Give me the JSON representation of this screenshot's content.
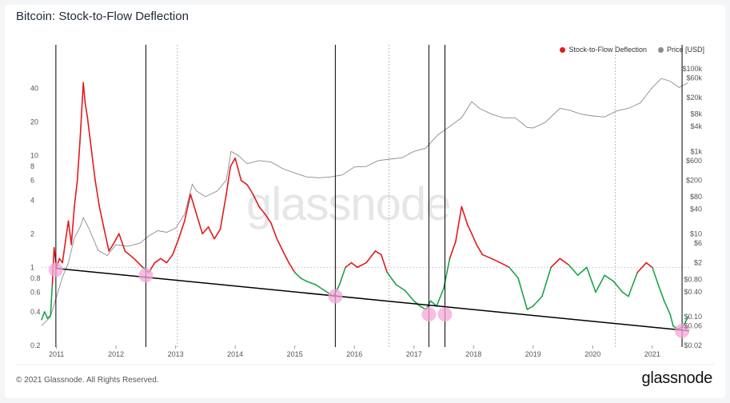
{
  "header": {
    "title": "Bitcoin: Stock-to-Flow Deflection"
  },
  "footer": {
    "copyright": "© 2021 Glassnode. All Rights Reserved.",
    "brand": "glassnode"
  },
  "watermark": "glassnode",
  "colors": {
    "deflection_above": "#e31a1c",
    "deflection_below": "#1aa34a",
    "price": "#8c8c8c",
    "trendline": "#000000",
    "highlight": "#f4a6d7"
  },
  "chart_data": {
    "type": "line",
    "title": "Bitcoin: Stock-to-Flow Deflection",
    "x_ticks": [
      "2011",
      "2012",
      "2013",
      "2014",
      "2015",
      "2016",
      "2017",
      "2018",
      "2019",
      "2020",
      "2021"
    ],
    "x_range": [
      2010.75,
      2021.62
    ],
    "y_left": {
      "scale": "log",
      "range": [
        0.2,
        60
      ],
      "ticks": [
        "40",
        "20",
        "10",
        "8",
        "6",
        "4",
        "2",
        "1",
        "0.8",
        "0.6",
        "0.4",
        "0.2"
      ]
    },
    "y_right": {
      "scale": "log",
      "range": [
        0.02,
        100000
      ],
      "ticks": [
        "$100k",
        "$60k",
        "$20k",
        "$8k",
        "$4k",
        "$1k",
        "$600",
        "$200",
        "$80",
        "$40",
        "$10",
        "$6",
        "$2",
        "$0.80",
        "$0.40",
        "$0.10",
        "$0.06",
        "$0.02"
      ]
    },
    "reference_level": 1,
    "legend": {
      "placement": "top-right",
      "items": [
        "Stock-to-Flow Deflection",
        "Price [USD]"
      ]
    },
    "series": [
      {
        "name": "Stock-to-Flow Deflection",
        "x": [
          2010.75,
          2010.8,
          2010.85,
          2010.9,
          2010.93,
          2010.96,
          2011.0,
          2011.05,
          2011.1,
          2011.15,
          2011.2,
          2011.25,
          2011.3,
          2011.35,
          2011.4,
          2011.45,
          2011.48,
          2011.52,
          2011.58,
          2011.65,
          2011.72,
          2011.8,
          2011.88,
          2011.95,
          2012.05,
          2012.15,
          2012.3,
          2012.45,
          2012.55,
          2012.65,
          2012.75,
          2012.85,
          2012.95,
          2013.05,
          2013.15,
          2013.25,
          2013.35,
          2013.45,
          2013.55,
          2013.65,
          2013.75,
          2013.85,
          2013.92,
          2014.0,
          2014.1,
          2014.2,
          2014.3,
          2014.4,
          2014.5,
          2014.6,
          2014.7,
          2014.8,
          2014.9,
          2015.0,
          2015.1,
          2015.2,
          2015.35,
          2015.5,
          2015.65,
          2015.75,
          2015.85,
          2015.95,
          2016.05,
          2016.2,
          2016.35,
          2016.45,
          2016.55,
          2016.7,
          2016.85,
          2017.0,
          2017.1,
          2017.2,
          2017.28,
          2017.38,
          2017.5,
          2017.6,
          2017.7,
          2017.8,
          2017.9,
          2017.97,
          2018.05,
          2018.15,
          2018.3,
          2018.45,
          2018.6,
          2018.75,
          2018.9,
          2019.0,
          2019.15,
          2019.3,
          2019.45,
          2019.6,
          2019.75,
          2019.9,
          2020.05,
          2020.2,
          2020.35,
          2020.5,
          2020.6,
          2020.75,
          2020.9,
          2021.0,
          2021.1,
          2021.2,
          2021.3,
          2021.35,
          2021.42,
          2021.5,
          2021.55,
          2021.6
        ],
        "y": [
          0.34,
          0.4,
          0.35,
          0.37,
          0.7,
          1.5,
          1.0,
          1.2,
          1.1,
          1.7,
          2.6,
          1.6,
          3.5,
          6.0,
          15.0,
          45.0,
          30.0,
          22.0,
          12.0,
          6.0,
          3.5,
          2.2,
          1.4,
          1.6,
          2.0,
          1.4,
          1.2,
          1.0,
          0.9,
          1.1,
          1.2,
          1.1,
          1.3,
          1.8,
          2.6,
          4.5,
          3.0,
          2.0,
          2.3,
          1.8,
          2.2,
          4.5,
          8.0,
          9.5,
          6.0,
          5.5,
          4.5,
          3.5,
          3.0,
          2.5,
          1.8,
          1.4,
          1.1,
          0.9,
          0.8,
          0.75,
          0.7,
          0.62,
          0.55,
          0.7,
          1.0,
          1.1,
          1.0,
          1.1,
          1.4,
          1.3,
          0.9,
          0.7,
          0.62,
          0.5,
          0.45,
          0.42,
          0.5,
          0.45,
          0.65,
          1.2,
          1.7,
          3.5,
          2.4,
          2.0,
          1.6,
          1.3,
          1.2,
          1.1,
          1.0,
          0.8,
          0.42,
          0.45,
          0.55,
          1.0,
          1.2,
          1.05,
          0.85,
          1.0,
          0.6,
          0.85,
          0.75,
          0.6,
          0.55,
          0.9,
          1.1,
          1.0,
          0.7,
          0.5,
          0.38,
          0.3,
          0.28,
          0.29,
          0.32,
          0.36
        ],
        "threshold": 1
      },
      {
        "name": "Price [USD]",
        "x": [
          2010.75,
          2010.9,
          2011.0,
          2011.1,
          2011.2,
          2011.3,
          2011.4,
          2011.45,
          2011.55,
          2011.7,
          2011.85,
          2012.0,
          2012.2,
          2012.4,
          2012.55,
          2012.7,
          2012.85,
          2013.0,
          2013.15,
          2013.28,
          2013.35,
          2013.5,
          2013.7,
          2013.85,
          2013.93,
          2014.05,
          2014.2,
          2014.4,
          2014.6,
          2014.8,
          2015.0,
          2015.2,
          2015.4,
          2015.6,
          2015.8,
          2016.0,
          2016.2,
          2016.4,
          2016.6,
          2016.8,
          2017.0,
          2017.2,
          2017.4,
          2017.6,
          2017.8,
          2017.97,
          2018.1,
          2018.3,
          2018.5,
          2018.7,
          2018.9,
          2019.0,
          2019.2,
          2019.45,
          2019.6,
          2019.8,
          2020.0,
          2020.2,
          2020.4,
          2020.6,
          2020.8,
          2021.0,
          2021.15,
          2021.3,
          2021.45,
          2021.55,
          2021.6
        ],
        "y": [
          0.06,
          0.1,
          0.3,
          0.9,
          2.0,
          8.0,
          15.0,
          25.0,
          13.0,
          4.0,
          3.0,
          5.5,
          5.0,
          6.0,
          9.0,
          12.0,
          11.0,
          14.0,
          30.0,
          160,
          110,
          80,
          110,
          200,
          1000,
          800,
          500,
          600,
          550,
          380,
          300,
          240,
          230,
          240,
          270,
          420,
          430,
          600,
          650,
          700,
          1000,
          1200,
          2500,
          4000,
          6500,
          16000,
          11000,
          8000,
          6500,
          6500,
          3800,
          3700,
          5000,
          11000,
          10000,
          8000,
          7200,
          6800,
          9500,
          11000,
          15000,
          35000,
          58000,
          50000,
          35000,
          42000,
          46000
        ]
      }
    ],
    "annotations": {
      "vertical_lines": [
        2010.99,
        2012.5,
        2015.68,
        2017.25,
        2017.52,
        2021.5
      ],
      "dotted_lines": [
        2013.03,
        2016.58,
        2020.38
      ],
      "trendline": {
        "from": [
          2010.99,
          0.98
        ],
        "to": [
          2021.62,
          0.27
        ]
      },
      "circles": [
        {
          "x": 2010.99,
          "y": 0.95
        },
        {
          "x": 2012.5,
          "y": 0.85
        },
        {
          "x": 2015.68,
          "y": 0.55
        },
        {
          "x": 2017.25,
          "y": 0.38
        },
        {
          "x": 2017.52,
          "y": 0.38
        },
        {
          "x": 2021.5,
          "y": 0.27
        }
      ]
    }
  }
}
